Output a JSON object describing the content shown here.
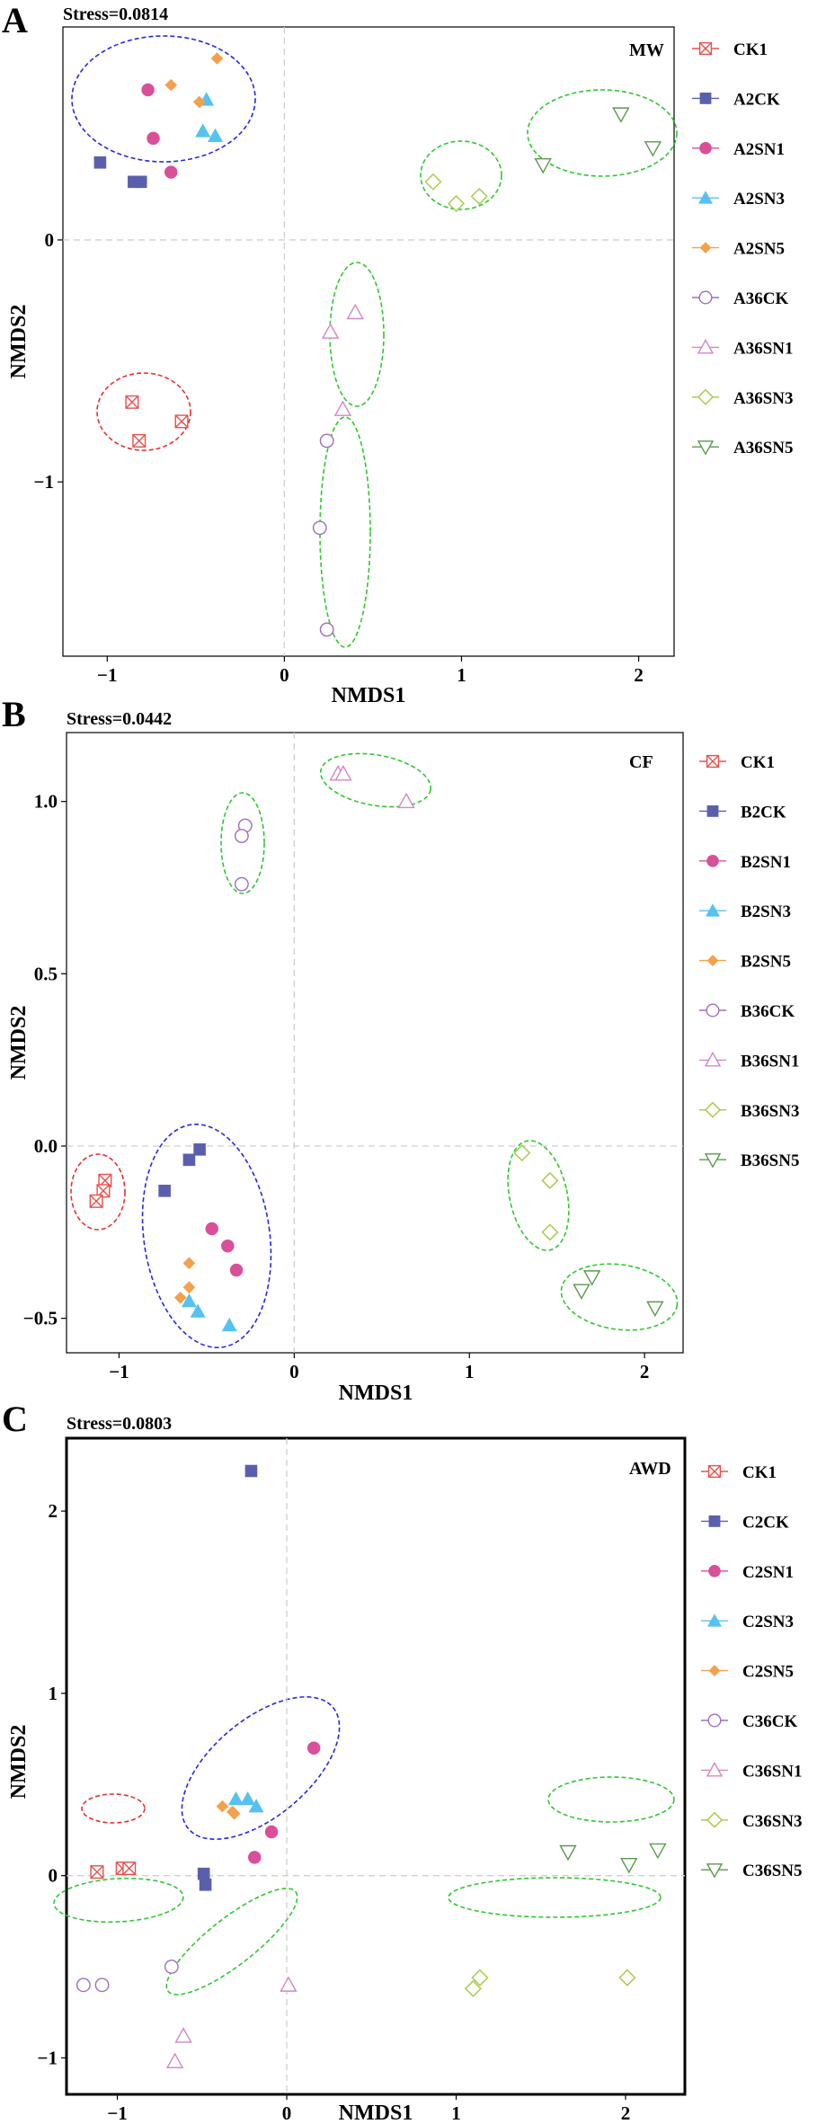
{
  "figure": "Three NMDS ordination panels",
  "chart_data": [
    {
      "type": "scatter",
      "panel_label": "A",
      "stress_label": "Stress=0.0814",
      "treatment_label": "MW",
      "xlabel": "NMDS1",
      "ylabel": "NMDS2",
      "xlim": [
        -1.25,
        2.2
      ],
      "ylim": [
        -1.72,
        0.88
      ],
      "xticks": [
        -1,
        0,
        1,
        2
      ],
      "xtick_labels": [
        "−1",
        "0",
        "1",
        "2"
      ],
      "yticks": [
        -1,
        0
      ],
      "ytick_labels": [
        "−1",
        "0"
      ],
      "series": [
        {
          "name": "CK1",
          "marker": "square-x",
          "color": "#e8504c",
          "points": [
            [
              -0.86,
              -0.67
            ],
            [
              -0.58,
              -0.75
            ],
            [
              -0.82,
              -0.83
            ]
          ]
        },
        {
          "name": "A2CK",
          "marker": "filled-square",
          "color": "#5a5fad",
          "points": [
            [
              -1.04,
              0.32
            ],
            [
              -0.85,
              0.24
            ],
            [
              -0.81,
              0.24
            ]
          ]
        },
        {
          "name": "A2SN1",
          "marker": "filled-circle",
          "color": "#d94f9a",
          "points": [
            [
              -0.77,
              0.62
            ],
            [
              -0.74,
              0.42
            ],
            [
              -0.64,
              0.28
            ]
          ]
        },
        {
          "name": "A2SN3",
          "marker": "filled-triangle",
          "color": "#55c2f0",
          "points": [
            [
              -0.44,
              0.58
            ],
            [
              -0.46,
              0.45
            ],
            [
              -0.39,
              0.43
            ]
          ]
        },
        {
          "name": "A2SN5",
          "marker": "filled-diamond",
          "color": "#f5a04a",
          "points": [
            [
              -0.64,
              0.64
            ],
            [
              -0.48,
              0.57
            ],
            [
              -0.38,
              0.75
            ]
          ]
        },
        {
          "name": "A36CK",
          "marker": "open-circle",
          "color": "#a06cbf",
          "points": [
            [
              0.24,
              -0.83
            ],
            [
              0.2,
              -1.19
            ],
            [
              0.24,
              -1.61
            ]
          ]
        },
        {
          "name": "A36SN1",
          "marker": "open-triangle",
          "color": "#d486c7",
          "points": [
            [
              0.26,
              -0.38
            ],
            [
              0.4,
              -0.3
            ],
            [
              0.33,
              -0.7
            ]
          ]
        },
        {
          "name": "A36SN3",
          "marker": "open-diamond",
          "color": "#a4c943",
          "points": [
            [
              0.84,
              0.24
            ],
            [
              0.97,
              0.15
            ],
            [
              1.1,
              0.18
            ]
          ]
        },
        {
          "name": "A36SN5",
          "marker": "open-triangle-down",
          "color": "#5a9a4c",
          "points": [
            [
              1.46,
              0.31
            ],
            [
              1.9,
              0.52
            ],
            [
              2.08,
              0.38
            ]
          ]
        }
      ],
      "ellipse_colors": [
        "#2727e8",
        "#e83030",
        "#2ec82e",
        "#2ec82e",
        "#2ec82e",
        "#2ec82e"
      ]
    },
    {
      "type": "scatter",
      "panel_label": "B",
      "stress_label": "Stress=0.0442",
      "treatment_label": "CF",
      "xlabel": "NMDS1",
      "ylabel": "NMDS2",
      "xlim": [
        -1.3,
        2.22
      ],
      "ylim": [
        -0.6,
        1.2
      ],
      "xticks": [
        -1,
        0,
        1,
        2
      ],
      "xtick_labels": [
        "−1",
        "0",
        "1",
        "2"
      ],
      "yticks": [
        -0.5,
        0,
        0.5,
        1
      ],
      "ytick_labels": [
        "−0.5",
        "0.0",
        "0.5",
        "1.0"
      ],
      "series": [
        {
          "name": "CK1",
          "marker": "square-x",
          "color": "#e8504c",
          "points": [
            [
              -1.08,
              -0.1
            ],
            [
              -1.09,
              -0.13
            ],
            [
              -1.13,
              -0.16
            ]
          ]
        },
        {
          "name": "B2CK",
          "marker": "filled-square",
          "color": "#5a5fad",
          "points": [
            [
              -0.74,
              -0.13
            ],
            [
              -0.6,
              -0.04
            ],
            [
              -0.54,
              -0.01
            ]
          ]
        },
        {
          "name": "B2SN1",
          "marker": "filled-circle",
          "color": "#d94f9a",
          "points": [
            [
              -0.47,
              -0.24
            ],
            [
              -0.38,
              -0.29
            ],
            [
              -0.33,
              -0.36
            ]
          ]
        },
        {
          "name": "B2SN3",
          "marker": "filled-triangle",
          "color": "#55c2f0",
          "points": [
            [
              -0.6,
              -0.45
            ],
            [
              -0.55,
              -0.48
            ],
            [
              -0.37,
              -0.52
            ]
          ]
        },
        {
          "name": "B2SN5",
          "marker": "filled-diamond",
          "color": "#f5a04a",
          "points": [
            [
              -0.6,
              -0.34
            ],
            [
              -0.6,
              -0.41
            ],
            [
              -0.65,
              -0.44
            ]
          ]
        },
        {
          "name": "B36CK",
          "marker": "open-circle",
          "color": "#a06cbf",
          "points": [
            [
              -0.28,
              0.93
            ],
            [
              -0.3,
              0.9
            ],
            [
              -0.3,
              0.76
            ]
          ]
        },
        {
          "name": "B36SN1",
          "marker": "open-triangle",
          "color": "#d486c7",
          "points": [
            [
              0.25,
              1.08
            ],
            [
              0.28,
              1.08
            ],
            [
              0.64,
              1
            ]
          ]
        },
        {
          "name": "B36SN3",
          "marker": "open-diamond",
          "color": "#a4c943",
          "points": [
            [
              1.3,
              -0.02
            ],
            [
              1.46,
              -0.1
            ],
            [
              1.46,
              -0.25
            ]
          ]
        },
        {
          "name": "B36SN5",
          "marker": "open-triangle-down",
          "color": "#5a9a4c",
          "points": [
            [
              1.64,
              -0.42
            ],
            [
              1.7,
              -0.38
            ],
            [
              2.06,
              -0.47
            ]
          ]
        }
      ],
      "ellipse_colors": [
        "#2727e8",
        "#e83030",
        "#2ec82e",
        "#2ec82e",
        "#2ec82e",
        "#2ec82e"
      ]
    },
    {
      "type": "scatter",
      "panel_label": "C",
      "stress_label": "Stress=0.0803",
      "treatment_label": "AWD",
      "xlabel": "NMDS1",
      "ylabel": "NMDS2",
      "xlim": [
        -1.3,
        2.35
      ],
      "ylim": [
        -1.2,
        2.4
      ],
      "xticks": [
        -1,
        0,
        1,
        2
      ],
      "xtick_labels": [
        "−1",
        "0",
        "1",
        "2"
      ],
      "yticks": [
        -1,
        0,
        1,
        2
      ],
      "ytick_labels": [
        "−1",
        "0",
        "1",
        "2"
      ],
      "series": [
        {
          "name": "CK1",
          "marker": "square-x",
          "color": "#e8504c",
          "points": [
            [
              -1.12,
              0.02
            ],
            [
              -0.97,
              0.04
            ],
            [
              -0.93,
              0.04
            ]
          ]
        },
        {
          "name": "C2CK",
          "marker": "filled-square",
          "color": "#5a5fad",
          "points": [
            [
              -0.21,
              2.22
            ],
            [
              -0.49,
              0.01
            ],
            [
              -0.48,
              -0.05
            ]
          ]
        },
        {
          "name": "C2SN1",
          "marker": "filled-circle",
          "color": "#d94f9a",
          "points": [
            [
              0.16,
              0.7
            ],
            [
              -0.09,
              0.24
            ],
            [
              -0.19,
              0.1
            ]
          ]
        },
        {
          "name": "C2SN3",
          "marker": "filled-triangle",
          "color": "#55c2f0",
          "points": [
            [
              -0.3,
              0.42
            ],
            [
              -0.23,
              0.42
            ],
            [
              -0.18,
              0.38
            ]
          ]
        },
        {
          "name": "C2SN5",
          "marker": "filled-diamond",
          "color": "#f5a04a",
          "points": [
            [
              -0.38,
              0.38
            ],
            [
              -0.31,
              0.34
            ],
            [
              -0.32,
              0.35
            ]
          ]
        },
        {
          "name": "C36CK",
          "marker": "open-circle",
          "color": "#a06cbf",
          "points": [
            [
              -1.2,
              -0.6
            ],
            [
              -1.09,
              -0.6
            ],
            [
              -0.68,
              -0.5
            ]
          ]
        },
        {
          "name": "C36SN1",
          "marker": "open-triangle",
          "color": "#d486c7",
          "points": [
            [
              0.01,
              -0.6
            ],
            [
              -0.61,
              -0.88
            ],
            [
              -0.66,
              -1.02
            ]
          ]
        },
        {
          "name": "C36SN3",
          "marker": "open-diamond",
          "color": "#a4c943",
          "points": [
            [
              1.1,
              -0.62
            ],
            [
              1.14,
              -0.56
            ],
            [
              2.01,
              -0.56
            ]
          ]
        },
        {
          "name": "C36SN5",
          "marker": "open-triangle-down",
          "color": "#5a9a4c",
          "points": [
            [
              1.66,
              0.13
            ],
            [
              2.02,
              0.06
            ],
            [
              2.19,
              0.14
            ]
          ]
        }
      ],
      "ellipse_colors": [
        "#2727e8",
        "#e83030",
        "#2ec82e",
        "#2ec82e",
        "#2ec82e",
        "#2ec82e"
      ]
    }
  ]
}
